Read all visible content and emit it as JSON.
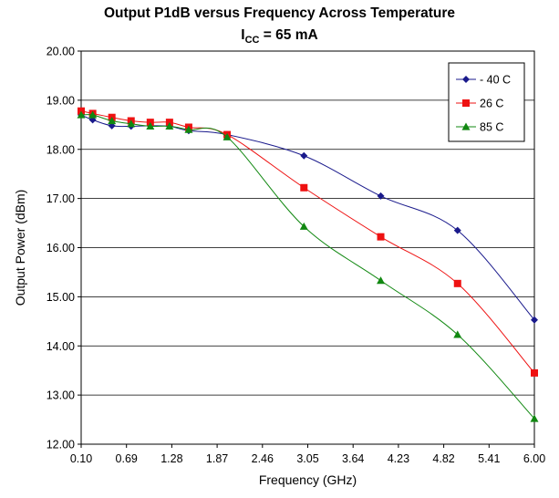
{
  "chart_data": {
    "type": "line",
    "title": "Output P1dB versus Frequency Across Temperature",
    "subtitle": {
      "prefix": "I",
      "sub": "CC",
      "suffix": " = 65 mA"
    },
    "xlabel": "Frequency (GHz)",
    "ylabel": "Output Power (dBm)",
    "xlim": [
      0.1,
      6.0
    ],
    "ylim": [
      12.0,
      20.0
    ],
    "x_ticks": [
      "0.10",
      "0.69",
      "1.28",
      "1.87",
      "2.46",
      "3.05",
      "3.64",
      "4.23",
      "4.82",
      "5.41",
      "6.00"
    ],
    "y_ticks": [
      "12.00",
      "13.00",
      "14.00",
      "15.00",
      "16.00",
      "17.00",
      "18.00",
      "19.00",
      "20.00"
    ],
    "grid": "horizontal",
    "legend_position": "top-right",
    "series": [
      {
        "name": "- 40 C",
        "color": "#1a1a8c",
        "marker": "diamond",
        "x": [
          0.1,
          0.25,
          0.5,
          0.75,
          1.0,
          1.25,
          1.5,
          2.0,
          3.0,
          4.0,
          5.0,
          6.0
        ],
        "y": [
          18.7,
          18.6,
          18.48,
          18.47,
          18.48,
          18.47,
          18.38,
          18.3,
          17.87,
          17.05,
          16.35,
          14.53
        ]
      },
      {
        "name": "26 C",
        "color": "#ee1111",
        "marker": "square",
        "x": [
          0.1,
          0.25,
          0.5,
          0.75,
          1.0,
          1.25,
          1.5,
          2.0,
          3.0,
          4.0,
          5.0,
          6.0
        ],
        "y": [
          18.78,
          18.73,
          18.65,
          18.58,
          18.55,
          18.55,
          18.45,
          18.3,
          17.22,
          16.22,
          15.27,
          13.45
        ]
      },
      {
        "name": "85 C",
        "color": "#118811",
        "marker": "triangle",
        "x": [
          0.1,
          0.25,
          0.5,
          0.75,
          1.0,
          1.25,
          1.5,
          2.0,
          3.0,
          4.0,
          5.0,
          6.0
        ],
        "y": [
          18.7,
          18.7,
          18.58,
          18.52,
          18.47,
          18.47,
          18.4,
          18.25,
          16.43,
          15.33,
          14.23,
          12.52
        ]
      }
    ]
  }
}
